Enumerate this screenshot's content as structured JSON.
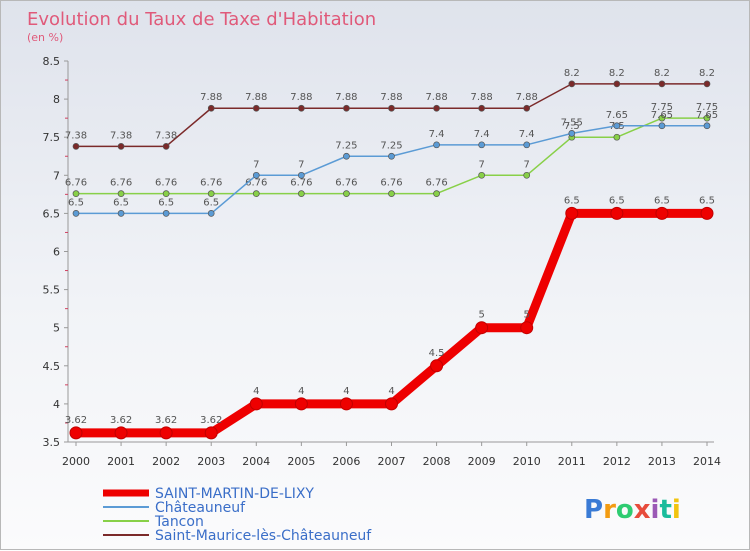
{
  "chart_data": {
    "type": "line",
    "title": "Evolution du Taux de Taxe d'Habitation",
    "subtitle": "(en %)",
    "x": [
      2000,
      2001,
      2002,
      2003,
      2004,
      2005,
      2006,
      2007,
      2008,
      2009,
      2010,
      2011,
      2012,
      2013,
      2014
    ],
    "ylim": [
      3.5,
      8.5
    ],
    "yticks": [
      3.5,
      4,
      4.5,
      5,
      5.5,
      6,
      6.5,
      7,
      7.5,
      8,
      8.5
    ],
    "grid": false,
    "legend_position": "bottom-left",
    "series": [
      {
        "name": "SAINT-MARTIN-DE-LIXY",
        "color": "#ee0000",
        "values": [
          3.62,
          3.62,
          3.62,
          3.62,
          4,
          4,
          4,
          4,
          4.5,
          5,
          5,
          6.5,
          6.5,
          6.5,
          6.5
        ],
        "labels": [
          "3.62",
          "3.62",
          "3.62",
          "3.62",
          "4",
          "4",
          "4",
          "4",
          "4.5",
          "5",
          "5",
          "6.5",
          "6.5",
          "6.5",
          "6.5"
        ]
      },
      {
        "name": "Châteauneuf",
        "color": "#5b9bd5",
        "values": [
          6.5,
          6.5,
          6.5,
          6.5,
          7,
          7,
          7.25,
          7.25,
          7.4,
          7.4,
          7.4,
          7.55,
          7.65,
          7.65,
          7.65
        ],
        "labels": [
          "6.5",
          "6.5",
          "6.5",
          "6.5",
          "7",
          "7",
          "7.25",
          "7.25",
          "7.4",
          "7.4",
          "7.4",
          "7.55",
          "7.65",
          "7.65",
          "7.65"
        ]
      },
      {
        "name": "Tancon",
        "color": "#88d048",
        "values": [
          6.76,
          6.76,
          6.76,
          6.76,
          6.76,
          6.76,
          6.76,
          6.76,
          6.76,
          7,
          7,
          7.5,
          7.5,
          7.75,
          7.75
        ],
        "labels": [
          "6.76",
          "6.76",
          "6.76",
          "6.76",
          "6.76",
          "6.76",
          "6.76",
          "6.76",
          "6.76",
          "7",
          "7",
          "7.5",
          "7.5",
          "7.75",
          "7.75"
        ]
      },
      {
        "name": "Saint-Maurice-lès-Châteauneuf",
        "color": "#7b2a2a",
        "values": [
          7.38,
          7.38,
          7.38,
          7.88,
          7.88,
          7.88,
          7.88,
          7.88,
          7.88,
          7.88,
          7.88,
          8.2,
          8.2,
          8.2,
          8.2
        ],
        "labels": [
          "7.38",
          "7.38",
          "7.38",
          "7.88",
          "7.88",
          "7.88",
          "7.88",
          "7.88",
          "7.88",
          "7.88",
          "7.88",
          "8.2",
          "8.2",
          "8.2",
          "8.2"
        ]
      }
    ]
  },
  "logo": {
    "text": "Proxiti",
    "colors": [
      "#3a7bd5",
      "#f39c12",
      "#2ecc71",
      "#e74c3c",
      "#9b59b6",
      "#1abc9c",
      "#f1c40f"
    ]
  }
}
